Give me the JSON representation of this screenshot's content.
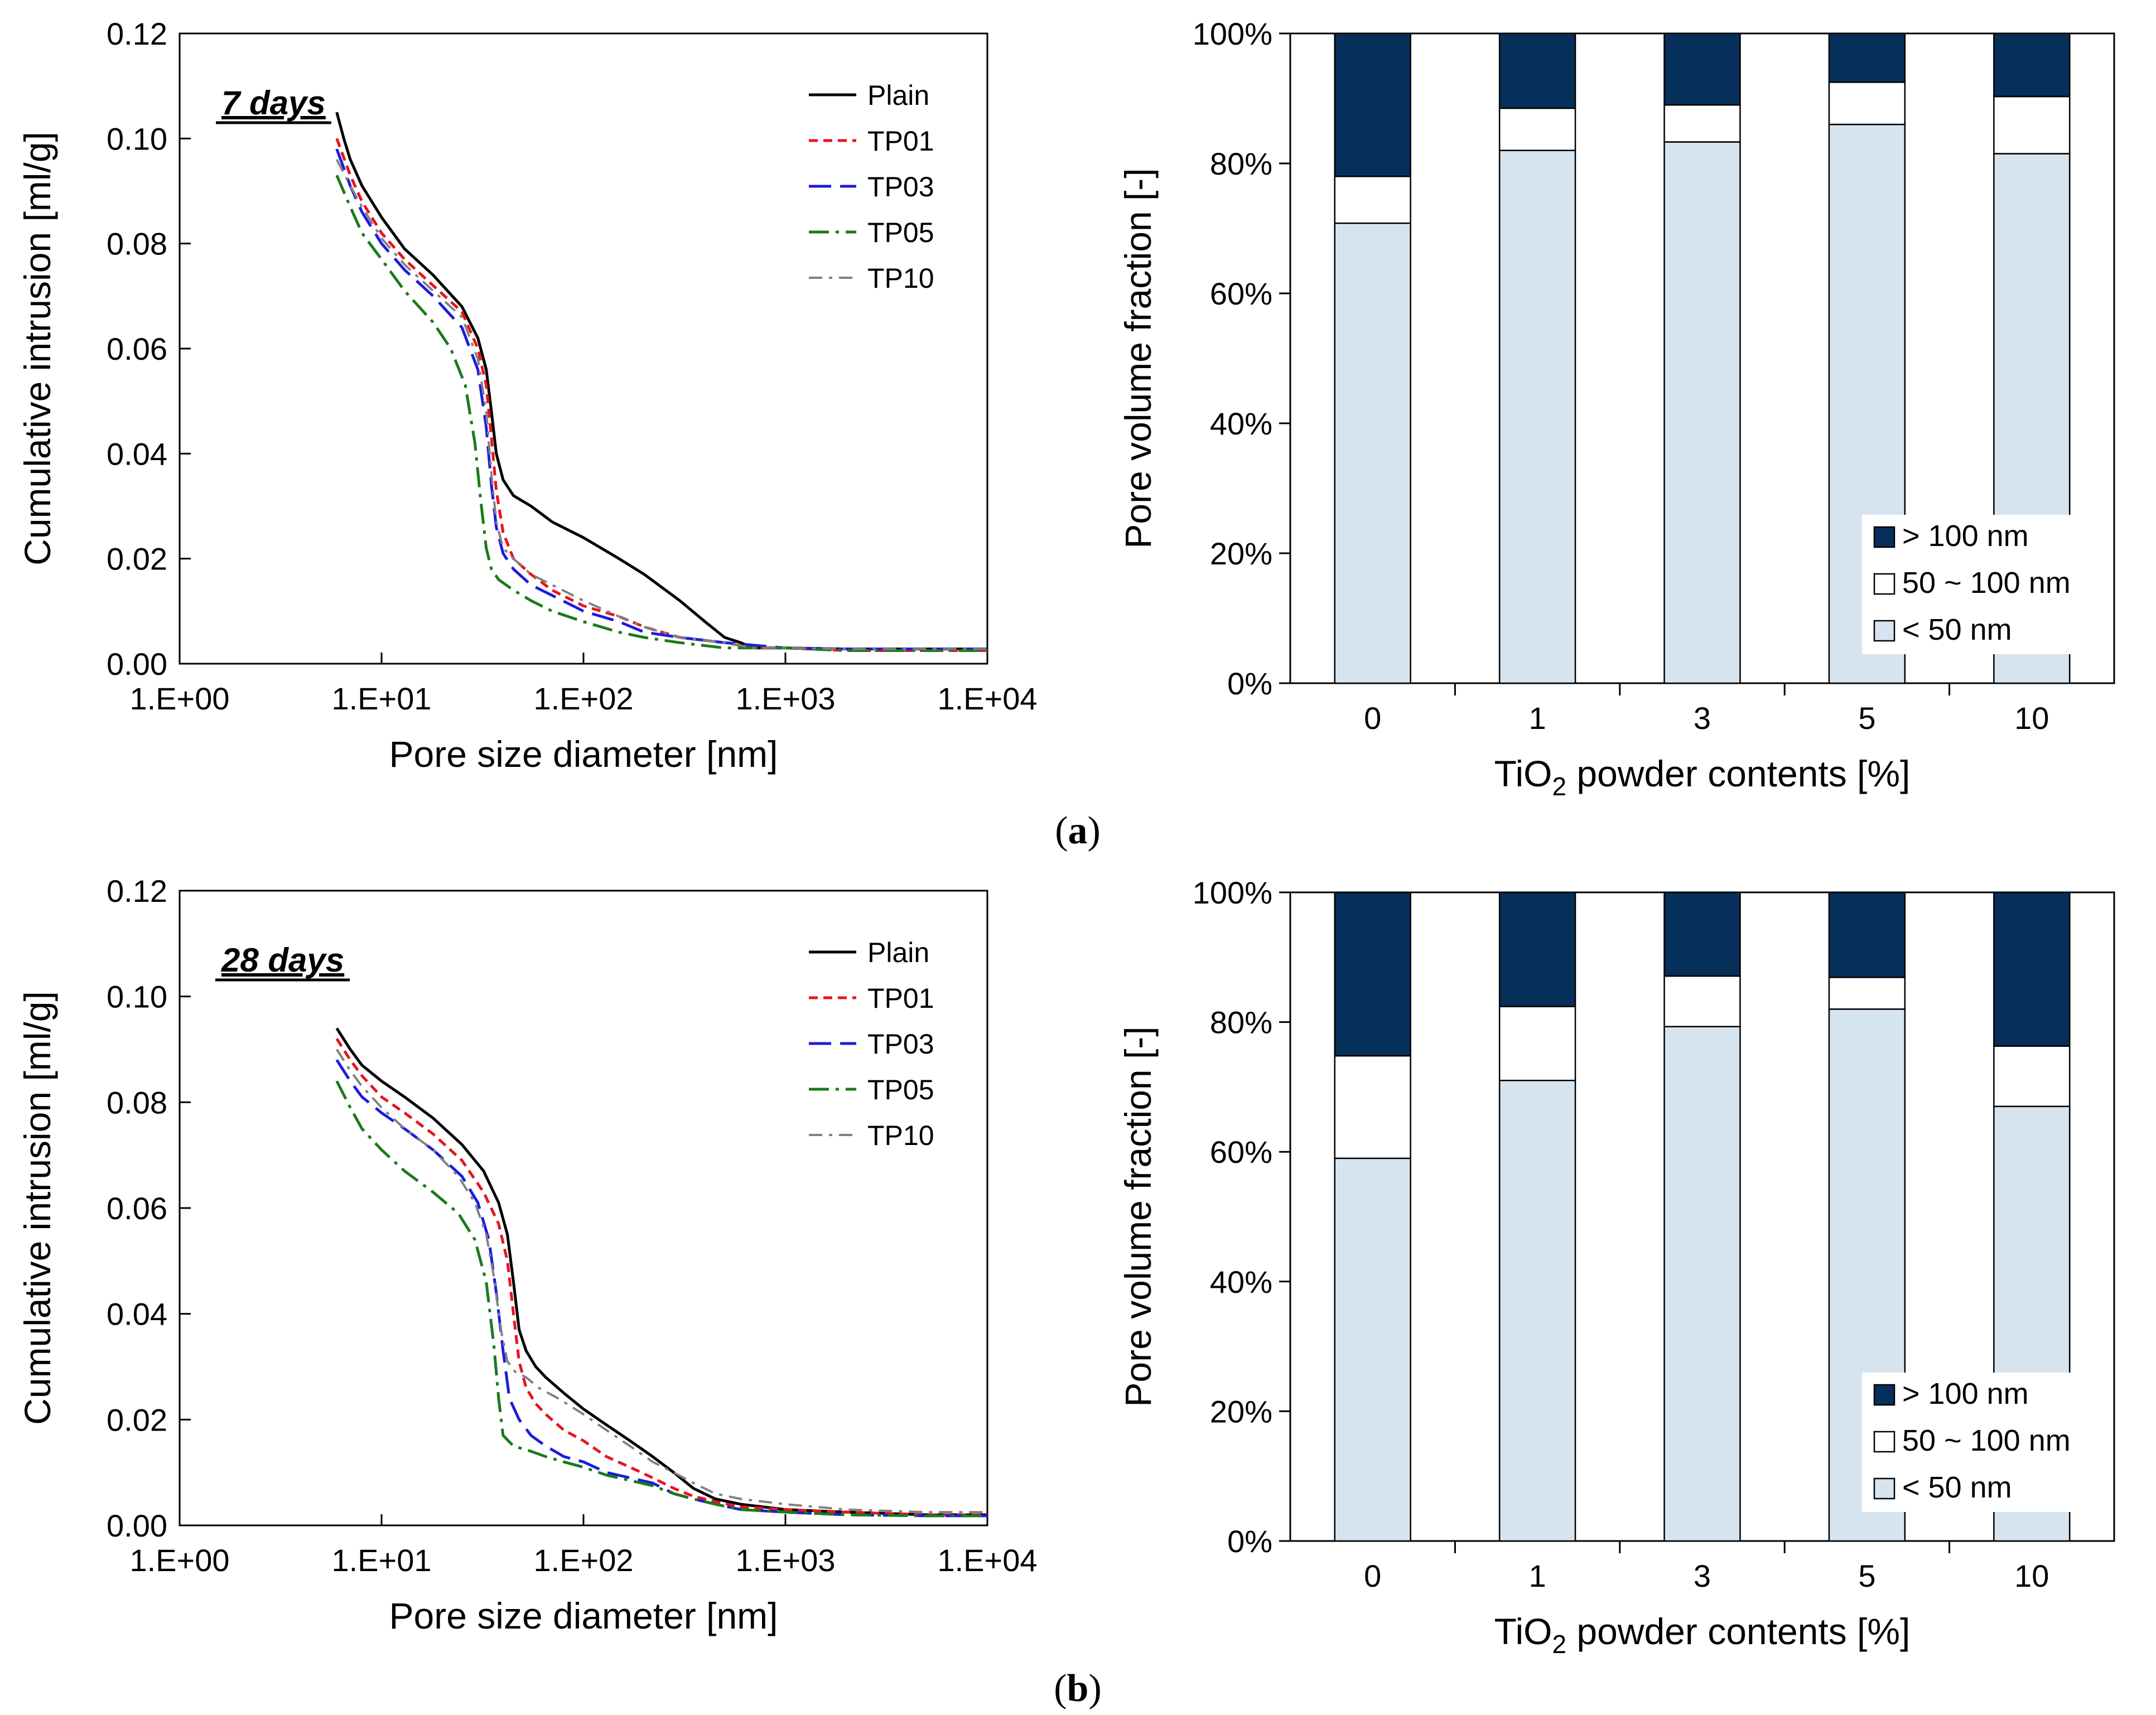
{
  "panel_labels": [
    "(a)",
    "(b)"
  ],
  "colors": {
    "plain": "#000000",
    "tp01": "#e8141e",
    "tp03": "#1c1ce0",
    "tp05": "#1a7a1a",
    "tp10": "#808080",
    "large": "#06305a",
    "medium": "#ffffff",
    "small": "#d6e4f0"
  },
  "chart_data": [
    {
      "type": "line",
      "panel": "a",
      "period_label": "7 days",
      "xscale": "log",
      "xlabel": "Pore size diameter [nm]",
      "ylabel": "Cumulative intrusion [ml/g]",
      "xlim": [
        1,
        10000
      ],
      "ylim": [
        0,
        0.12
      ],
      "xticks": [
        1,
        10,
        100,
        1000,
        10000
      ],
      "xtick_labels": [
        "1.E+00",
        "1.E+01",
        "1.E+02",
        "1.E+03",
        "1.E+04"
      ],
      "yticks": [
        0,
        0.02,
        0.04,
        0.06,
        0.08,
        0.1,
        0.12
      ],
      "ytick_labels": [
        "0.00",
        "0.02",
        "0.04",
        "0.06",
        "0.08",
        "0.10",
        "0.12"
      ],
      "legend_position": "top-right",
      "series": [
        {
          "name": "Plain",
          "style": "solid",
          "color_key": "plain",
          "x": [
            6,
            6.5,
            7,
            8,
            10,
            13,
            18,
            25,
            30,
            33,
            35,
            37,
            40,
            45,
            55,
            70,
            100,
            150,
            200,
            300,
            400,
            500,
            600,
            700,
            1000,
            2000,
            5000,
            10000
          ],
          "y": [
            0.105,
            0.1,
            0.096,
            0.091,
            0.085,
            0.079,
            0.074,
            0.068,
            0.062,
            0.056,
            0.048,
            0.04,
            0.035,
            0.032,
            0.03,
            0.027,
            0.024,
            0.02,
            0.017,
            0.012,
            0.008,
            0.005,
            0.004,
            0.003,
            0.003,
            0.0028,
            0.0028,
            0.0028
          ]
        },
        {
          "name": "TP01",
          "style": "dashed",
          "color_key": "tp01",
          "x": [
            6,
            7,
            8,
            10,
            13,
            18,
            25,
            30,
            33,
            35,
            37,
            40,
            45,
            55,
            70,
            100,
            150,
            200,
            300,
            500,
            700,
            1000,
            2000,
            5000,
            10000
          ],
          "y": [
            0.1,
            0.093,
            0.088,
            0.082,
            0.077,
            0.072,
            0.067,
            0.06,
            0.053,
            0.043,
            0.033,
            0.025,
            0.02,
            0.017,
            0.014,
            0.011,
            0.009,
            0.007,
            0.005,
            0.004,
            0.003,
            0.003,
            0.0025,
            0.0025,
            0.0025
          ]
        },
        {
          "name": "TP03",
          "style": "longdash",
          "color_key": "tp03",
          "x": [
            6,
            7,
            8,
            10,
            13,
            18,
            25,
            30,
            33,
            35,
            37,
            40,
            45,
            55,
            70,
            100,
            150,
            200,
            300,
            500,
            700,
            1000,
            2000,
            5000,
            10000
          ],
          "y": [
            0.098,
            0.091,
            0.086,
            0.08,
            0.075,
            0.07,
            0.064,
            0.056,
            0.045,
            0.034,
            0.026,
            0.021,
            0.018,
            0.015,
            0.013,
            0.01,
            0.008,
            0.006,
            0.005,
            0.004,
            0.0035,
            0.003,
            0.0028,
            0.0028,
            0.0028
          ]
        },
        {
          "name": "TP05",
          "style": "dashdot",
          "color_key": "tp05",
          "x": [
            6,
            7,
            8,
            10,
            13,
            18,
            22,
            26,
            29,
            31,
            33,
            35,
            38,
            45,
            55,
            70,
            100,
            150,
            200,
            300,
            500,
            700,
            1000,
            2000,
            5000,
            10000
          ],
          "y": [
            0.093,
            0.087,
            0.082,
            0.077,
            0.071,
            0.065,
            0.06,
            0.053,
            0.042,
            0.031,
            0.022,
            0.018,
            0.016,
            0.014,
            0.012,
            0.01,
            0.008,
            0.006,
            0.005,
            0.004,
            0.003,
            0.003,
            0.003,
            0.0025,
            0.0025,
            0.0025
          ]
        },
        {
          "name": "TP10",
          "style": "dashdotgray",
          "color_key": "tp10",
          "x": [
            6,
            7,
            8,
            10,
            13,
            18,
            25,
            30,
            33,
            35,
            37,
            40,
            45,
            55,
            70,
            100,
            150,
            200,
            300,
            500,
            700,
            1000,
            2000,
            5000,
            10000
          ],
          "y": [
            0.096,
            0.091,
            0.087,
            0.081,
            0.076,
            0.071,
            0.066,
            0.058,
            0.048,
            0.036,
            0.027,
            0.022,
            0.02,
            0.017,
            0.015,
            0.012,
            0.009,
            0.007,
            0.005,
            0.004,
            0.003,
            0.003,
            0.0028,
            0.0028,
            0.0028
          ]
        }
      ]
    },
    {
      "type": "bar",
      "stacked": true,
      "panel": "a",
      "xlabel": "TiO₂ powder contents [%]",
      "xlabel_base": "TiO",
      "xlabel_sub": "2",
      "xlabel_rest": " powder contents [%]",
      "ylabel": "Pore volume fraction [-]",
      "ylim": [
        0,
        100
      ],
      "yticks": [
        0,
        20,
        40,
        60,
        80,
        100
      ],
      "ytick_labels": [
        "0%",
        "20%",
        "40%",
        "60%",
        "80%",
        "100%"
      ],
      "categories": [
        "0",
        "1",
        "3",
        "5",
        "10"
      ],
      "legend_position": "bottom-right",
      "series": [
        {
          "name": "< 50 nm",
          "color_key": "small",
          "values": [
            70.8,
            82.0,
            83.3,
            86.0,
            81.5
          ]
        },
        {
          "name": "50 ~ 100 nm",
          "color_key": "medium",
          "values": [
            7.2,
            6.5,
            5.7,
            6.5,
            8.8
          ]
        },
        {
          "name": "> 100 nm",
          "color_key": "large",
          "values": [
            22.0,
            11.5,
            11.0,
            7.5,
            9.7
          ]
        }
      ],
      "legend_order": [
        "> 100 nm",
        "50 ~ 100 nm",
        "< 50 nm"
      ]
    },
    {
      "type": "line",
      "panel": "b",
      "period_label": "28 days",
      "xscale": "log",
      "xlabel": "Pore size diameter [nm]",
      "ylabel": "Cumulative intrusion [ml/g]",
      "xlim": [
        1,
        10000
      ],
      "ylim": [
        0,
        0.12
      ],
      "xticks": [
        1,
        10,
        100,
        1000,
        10000
      ],
      "xtick_labels": [
        "1.E+00",
        "1.E+01",
        "1.E+02",
        "1.E+03",
        "1.E+04"
      ],
      "yticks": [
        0,
        0.02,
        0.04,
        0.06,
        0.08,
        0.1,
        0.12
      ],
      "ytick_labels": [
        "0.00",
        "0.02",
        "0.04",
        "0.06",
        "0.08",
        "0.10",
        "0.12"
      ],
      "legend_position": "top-right",
      "series": [
        {
          "name": "Plain",
          "style": "solid",
          "color_key": "plain",
          "x": [
            6,
            7,
            8,
            10,
            13,
            18,
            25,
            32,
            38,
            42,
            45,
            48,
            52,
            58,
            65,
            80,
            100,
            130,
            170,
            220,
            280,
            350,
            450,
            600,
            1000,
            2000,
            5000,
            10000
          ],
          "y": [
            0.094,
            0.09,
            0.087,
            0.084,
            0.081,
            0.077,
            0.072,
            0.067,
            0.061,
            0.055,
            0.046,
            0.037,
            0.033,
            0.03,
            0.028,
            0.025,
            0.022,
            0.019,
            0.016,
            0.013,
            0.01,
            0.007,
            0.005,
            0.004,
            0.003,
            0.0025,
            0.002,
            0.002
          ]
        },
        {
          "name": "TP01",
          "style": "dashed",
          "color_key": "tp01",
          "x": [
            6,
            7,
            8,
            10,
            13,
            18,
            25,
            32,
            38,
            42,
            45,
            48,
            52,
            58,
            65,
            80,
            100,
            130,
            170,
            220,
            280,
            350,
            450,
            600,
            1000,
            2000,
            5000,
            10000
          ],
          "y": [
            0.092,
            0.088,
            0.085,
            0.081,
            0.078,
            0.074,
            0.069,
            0.063,
            0.057,
            0.05,
            0.04,
            0.031,
            0.026,
            0.023,
            0.021,
            0.018,
            0.016,
            0.013,
            0.011,
            0.009,
            0.007,
            0.0055,
            0.0045,
            0.0035,
            0.003,
            0.0025,
            0.002,
            0.002
          ]
        },
        {
          "name": "TP03",
          "style": "longdash",
          "color_key": "tp03",
          "x": [
            6,
            7,
            8,
            10,
            13,
            18,
            25,
            30,
            34,
            37,
            40,
            43,
            48,
            55,
            65,
            80,
            100,
            130,
            170,
            220,
            280,
            350,
            450,
            600,
            1000,
            2000,
            5000,
            10000
          ],
          "y": [
            0.088,
            0.084,
            0.081,
            0.078,
            0.075,
            0.071,
            0.066,
            0.061,
            0.054,
            0.044,
            0.033,
            0.024,
            0.02,
            0.017,
            0.015,
            0.013,
            0.012,
            0.01,
            0.009,
            0.008,
            0.006,
            0.005,
            0.004,
            0.003,
            0.0025,
            0.002,
            0.0018,
            0.0018
          ]
        },
        {
          "name": "TP05",
          "style": "dashdot",
          "color_key": "tp05",
          "x": [
            6,
            7,
            8,
            10,
            13,
            18,
            24,
            29,
            33,
            36,
            38,
            40,
            45,
            55,
            65,
            80,
            100,
            130,
            170,
            220,
            280,
            350,
            450,
            600,
            1000,
            2000,
            5000,
            10000
          ],
          "y": [
            0.084,
            0.079,
            0.075,
            0.071,
            0.067,
            0.063,
            0.059,
            0.054,
            0.046,
            0.034,
            0.024,
            0.017,
            0.015,
            0.014,
            0.013,
            0.012,
            0.011,
            0.0095,
            0.0085,
            0.0075,
            0.006,
            0.005,
            0.004,
            0.003,
            0.0025,
            0.002,
            0.0018,
            0.0018
          ]
        },
        {
          "name": "TP10",
          "style": "dashdotgray",
          "color_key": "tp10",
          "x": [
            6,
            7,
            8,
            10,
            13,
            18,
            24,
            29,
            33,
            36,
            39,
            42,
            46,
            52,
            60,
            75,
            100,
            130,
            170,
            220,
            280,
            350,
            450,
            600,
            1000,
            2000,
            5000,
            10000
          ],
          "y": [
            0.09,
            0.086,
            0.083,
            0.079,
            0.075,
            0.071,
            0.066,
            0.061,
            0.055,
            0.047,
            0.037,
            0.031,
            0.029,
            0.028,
            0.026,
            0.024,
            0.021,
            0.018,
            0.015,
            0.012,
            0.01,
            0.008,
            0.006,
            0.005,
            0.004,
            0.003,
            0.0025,
            0.0025
          ]
        }
      ]
    },
    {
      "type": "bar",
      "stacked": true,
      "panel": "b",
      "xlabel": "TiO₂ powder contents [%]",
      "xlabel_base": "TiO",
      "xlabel_sub": "2",
      "xlabel_rest": " powder contents [%]",
      "ylabel": "Pore volume fraction [-]",
      "ylim": [
        0,
        100
      ],
      "yticks": [
        0,
        20,
        40,
        60,
        80,
        100
      ],
      "ytick_labels": [
        "0%",
        "20%",
        "40%",
        "60%",
        "80%",
        "100%"
      ],
      "categories": [
        "0",
        "1",
        "3",
        "5",
        "10"
      ],
      "legend_position": "bottom-right",
      "series": [
        {
          "name": "< 50 nm",
          "color_key": "small",
          "values": [
            59.0,
            71.0,
            79.3,
            82.0,
            67.0
          ]
        },
        {
          "name": "50 ~ 100 nm",
          "color_key": "medium",
          "values": [
            15.8,
            11.4,
            7.8,
            4.9,
            9.3
          ]
        },
        {
          "name": "> 100 nm",
          "color_key": "large",
          "values": [
            25.2,
            17.6,
            12.9,
            13.1,
            23.7
          ]
        }
      ],
      "legend_order": [
        "> 100 nm",
        "50 ~ 100 nm",
        "< 50 nm"
      ]
    }
  ]
}
